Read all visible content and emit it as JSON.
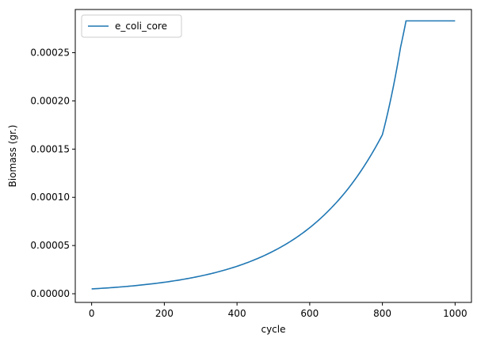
{
  "chart_data": {
    "type": "line",
    "xlabel": "cycle",
    "ylabel": "Biomass (gr.)",
    "xlim": [
      -45,
      1045
    ],
    "ylim": [
      -9e-06,
      0.0002948
    ],
    "xticks": [
      0,
      200,
      400,
      600,
      800,
      1000
    ],
    "xtick_labels": [
      "0",
      "200",
      "400",
      "600",
      "800",
      "1000"
    ],
    "yticks": [
      0,
      5e-05,
      0.0001,
      0.00015,
      0.0002,
      0.00025
    ],
    "ytick_labels": [
      "0.00000",
      "0.00005",
      "0.00010",
      "0.00015",
      "0.00020",
      "0.00025"
    ],
    "grid": false,
    "legend_position": "top-left",
    "series": [
      {
        "name": "e_coli_core",
        "color": "#1f77b4",
        "x": [
          0,
          50,
          100,
          150,
          200,
          250,
          300,
          350,
          400,
          450,
          500,
          550,
          600,
          650,
          700,
          750,
          800,
          850,
          865,
          900,
          950,
          1000
        ],
        "y": [
          5e-06,
          6.2e-06,
          7.7e-06,
          9.6e-06,
          1.19e-05,
          1.48e-05,
          1.84e-05,
          2.29e-05,
          2.85e-05,
          3.55e-05,
          4.42e-05,
          5.5e-05,
          6.85e-05,
          8.54e-05,
          0.0001063,
          0.0001325,
          0.000165,
          0.0002557,
          0.000283,
          0.000283,
          0.000283,
          0.000283
        ]
      }
    ]
  }
}
